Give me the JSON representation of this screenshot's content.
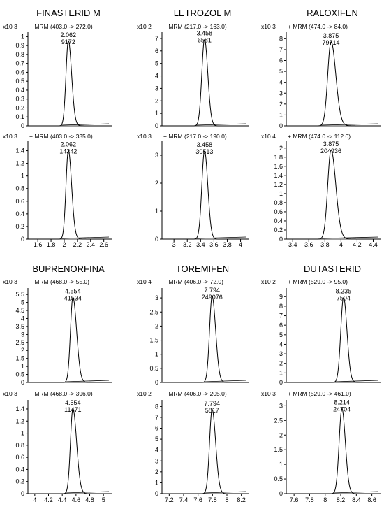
{
  "chart_data": [
    {
      "type": "line",
      "title": "FINASTERID M",
      "x_ticks": [
        "1.6",
        "1.8",
        "2",
        "2.2",
        "2.4",
        "2.6"
      ],
      "xlim": [
        1.45,
        2.72
      ],
      "panels": [
        {
          "mrm_label": "+ MRM (403.0 -> 272.0)",
          "scale_label": "x10 3",
          "y_ticks": [
            "0",
            "0.1",
            "0.2",
            "0.3",
            "0.4",
            "0.5",
            "0.6",
            "0.7",
            "0.8",
            "0.9",
            "1"
          ],
          "ylim": [
            0,
            1.05
          ],
          "peak": {
            "rt": 2.062,
            "rt_label": "2.062",
            "area_label": "9172",
            "height": 0.95,
            "sigma_left": 0.035,
            "sigma_right": 0.05,
            "tail": 0.06
          }
        },
        {
          "mrm_label": "+ MRM (403.0 -> 335.0)",
          "scale_label": "x10 3",
          "y_ticks": [
            "0",
            "0.2",
            "0.4",
            "0.6",
            "0.8",
            "1",
            "1.2",
            "1.4"
          ],
          "ylim": [
            0,
            1.55
          ],
          "peak": {
            "rt": 2.062,
            "rt_label": "2.062",
            "area_label": "14342",
            "height": 1.4,
            "sigma_left": 0.035,
            "sigma_right": 0.05,
            "tail": 0.07
          }
        }
      ]
    },
    {
      "type": "line",
      "title": "LETROZOL M",
      "x_ticks": [
        "3",
        "3.2",
        "3.4",
        "3.6",
        "3.8",
        "4"
      ],
      "xlim": [
        2.82,
        4.12
      ],
      "panels": [
        {
          "mrm_label": "+ MRM (217.0 -> 163.0)",
          "scale_label": "x10 2",
          "y_ticks": [
            "0",
            "1",
            "2",
            "3",
            "4",
            "5",
            "6",
            "7"
          ],
          "ylim": [
            0,
            7.5
          ],
          "peak": {
            "rt": 3.458,
            "rt_label": "3.458",
            "area_label": "6581",
            "height": 6.9,
            "sigma_left": 0.04,
            "sigma_right": 0.05,
            "tail": 0.03
          }
        },
        {
          "mrm_label": "+ MRM (217.0 -> 190.0)",
          "scale_label": "x10 3",
          "y_ticks": [
            "0",
            "1",
            "2",
            "3"
          ],
          "ylim": [
            0,
            3.5
          ],
          "peak": {
            "rt": 3.458,
            "rt_label": "3.458",
            "area_label": "30513",
            "height": 3.15,
            "sigma_left": 0.04,
            "sigma_right": 0.05,
            "tail": 0.03
          }
        }
      ]
    },
    {
      "type": "line",
      "title": "RALOXIFEN",
      "x_ticks": [
        "3.4",
        "3.6",
        "3.8",
        "4",
        "4.2",
        "4.4"
      ],
      "xlim": [
        3.32,
        4.5
      ],
      "panels": [
        {
          "mrm_label": "+ MRM (474.0 -> 84.0)",
          "scale_label": "x10 3",
          "y_ticks": [
            "0",
            "1",
            "2",
            "3",
            "4",
            "5",
            "6",
            "7",
            "8"
          ],
          "ylim": [
            0,
            8.6
          ],
          "peak": {
            "rt": 3.875,
            "rt_label": "3.875",
            "area_label": "79714",
            "height": 7.7,
            "sigma_left": 0.04,
            "sigma_right": 0.06,
            "tail": 0.08
          }
        },
        {
          "mrm_label": "+ MRM (474.0 -> 112.0)",
          "scale_label": "x10 4",
          "y_ticks": [
            "0",
            "0.2",
            "0.4",
            "0.6",
            "0.8",
            "1",
            "1.2",
            "1.4",
            "1.6",
            "1.8",
            "2"
          ],
          "ylim": [
            0,
            2.15
          ],
          "peak": {
            "rt": 3.875,
            "rt_label": "3.875",
            "area_label": "204936",
            "height": 1.95,
            "sigma_left": 0.04,
            "sigma_right": 0.06,
            "tail": 0.08
          }
        }
      ]
    },
    {
      "type": "line",
      "title": "BUPRENORFINA",
      "x_ticks": [
        "4",
        "4.2",
        "4.4",
        "4.6",
        "4.8",
        "5"
      ],
      "xlim": [
        3.9,
        5.12
      ],
      "panels": [
        {
          "mrm_label": "+ MRM (468.0 -> 55.0)",
          "scale_label": "x10 3",
          "y_ticks": [
            "0",
            "0.5",
            "1",
            "1.5",
            "2",
            "2.5",
            "3",
            "3.5",
            "4",
            "4.5",
            "5",
            "5.5"
          ],
          "ylim": [
            0,
            5.9
          ],
          "peak": {
            "rt": 4.554,
            "rt_label": "4.554",
            "area_label": "41534",
            "height": 5.3,
            "sigma_left": 0.035,
            "sigma_right": 0.055,
            "tail": 0.03
          }
        },
        {
          "mrm_label": "+ MRM (468.0 -> 396.0)",
          "scale_label": "x10 3",
          "y_ticks": [
            "0",
            "0.2",
            "0.4",
            "0.6",
            "0.8",
            "1",
            "1.2",
            "1.4"
          ],
          "ylim": [
            0,
            1.55
          ],
          "peak": {
            "rt": 4.554,
            "rt_label": "4.554",
            "area_label": "11471",
            "height": 1.4,
            "sigma_left": 0.035,
            "sigma_right": 0.055,
            "tail": 0.03
          }
        }
      ]
    },
    {
      "type": "line",
      "title": "TOREMIFEN",
      "x_ticks": [
        "7.2",
        "7.4",
        "7.6",
        "7.8",
        "8",
        "8.2"
      ],
      "xlim": [
        7.1,
        8.3
      ],
      "panels": [
        {
          "mrm_label": "+ MRM (406.0 -> 72.0)",
          "scale_label": "x10 4",
          "y_ticks": [
            "0",
            "0.5",
            "1",
            "1.5",
            "2",
            "2.5",
            "3"
          ],
          "ylim": [
            0,
            3.35
          ],
          "peak": {
            "rt": 7.794,
            "rt_label": "7.794",
            "area_label": "249076",
            "height": 3.05,
            "sigma_left": 0.035,
            "sigma_right": 0.05,
            "tail": 0.02
          }
        },
        {
          "mrm_label": "+ MRM (406.0 -> 205.0)",
          "scale_label": "x10 2",
          "y_ticks": [
            "0",
            "1",
            "2",
            "3",
            "4",
            "5",
            "6",
            "7",
            "8"
          ],
          "ylim": [
            0,
            8.6
          ],
          "peak": {
            "rt": 7.794,
            "rt_label": "7.794",
            "area_label": "5817",
            "height": 7.7,
            "sigma_left": 0.035,
            "sigma_right": 0.05,
            "tail": 0.03
          }
        }
      ]
    },
    {
      "type": "line",
      "title": "DUTASTERID",
      "x_ticks": [
        "7.6",
        "7.8",
        "8",
        "8.2",
        "8.4",
        "8.6"
      ],
      "xlim": [
        7.5,
        8.72
      ],
      "panels": [
        {
          "mrm_label": "+ MRM (529.0 -> 95.0)",
          "scale_label": "x10 2",
          "y_ticks": [
            "0",
            "1",
            "2",
            "3",
            "4",
            "5",
            "6",
            "7",
            "8",
            "9"
          ],
          "ylim": [
            0,
            9.9
          ],
          "peak": {
            "rt": 8.235,
            "rt_label": "8.235",
            "area_label": "7504",
            "height": 8.9,
            "sigma_left": 0.035,
            "sigma_right": 0.045,
            "tail": 0.02
          }
        },
        {
          "mrm_label": "+ MRM (529.0 -> 461.0)",
          "scale_label": "x10 3",
          "y_ticks": [
            "0",
            "0.5",
            "1",
            "1.5",
            "2",
            "2.5",
            "3"
          ],
          "ylim": [
            0,
            3.2
          ],
          "peak": {
            "rt": 8.214,
            "rt_label": "8.214",
            "area_label": "24704",
            "height": 2.9,
            "sigma_left": 0.035,
            "sigma_right": 0.045,
            "tail": 0.02
          }
        }
      ]
    }
  ]
}
